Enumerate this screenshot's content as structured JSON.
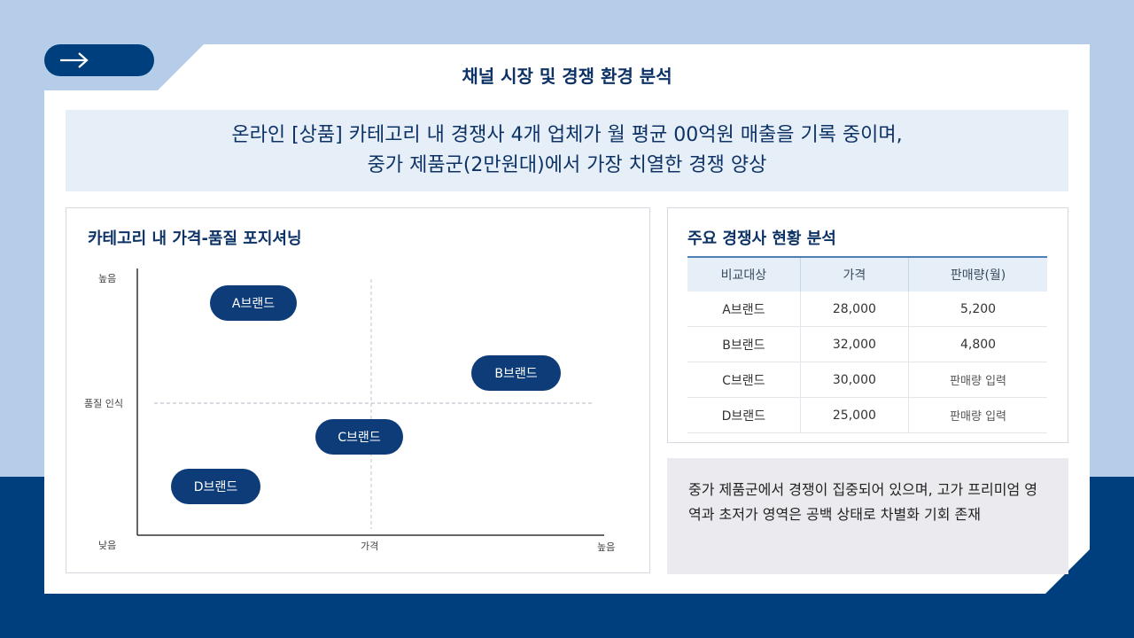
{
  "header": {
    "title": "채널 시장 및 경쟁 환경 분석",
    "arrow_icon": "arrow-right-icon"
  },
  "banner": {
    "line1": "온라인 [상품] 카테고리 내 경쟁사 4개 업체가 월 평균 00억원 매출을 기록 중이며,",
    "line2": "중가 제품군(2만원대)에서 가장 치열한 경쟁 양상"
  },
  "chart_data": {
    "type": "scatter",
    "title": "카테고리 내 가격-품질 포지셔닝",
    "xlabel": "가격",
    "ylabel": "품질 인식",
    "y_top_label": "높음",
    "y_bottom_label": "낮음",
    "x_right_label": "높음",
    "points": [
      {
        "label": "A브랜드"
      },
      {
        "label": "B브랜드"
      },
      {
        "label": "C브랜드"
      },
      {
        "label": "D브랜드"
      }
    ]
  },
  "table": {
    "title": "주요 경쟁사 현황 분석",
    "headers": [
      "비교대상",
      "가격",
      "판매량(월)"
    ],
    "rows": [
      [
        "A브랜드",
        "28,000",
        "5,200"
      ],
      [
        "B브랜드",
        "32,000",
        "4,800"
      ],
      [
        "C브랜드",
        "30,000",
        "판매량 입력"
      ],
      [
        "D브랜드",
        "25,000",
        "판매량 입력"
      ]
    ]
  },
  "note": {
    "text": "중가 제품군에서 경쟁이 집중되어 있으며, 고가 프리미엄 영역과 초저가 영역은 공백 상태로 차별화 기회 존재"
  },
  "colors": {
    "navy": "#003f7d",
    "pill": "#0d3c78",
    "light_blue_bg": "#b5cde8",
    "banner_bg": "#e6eef7"
  }
}
